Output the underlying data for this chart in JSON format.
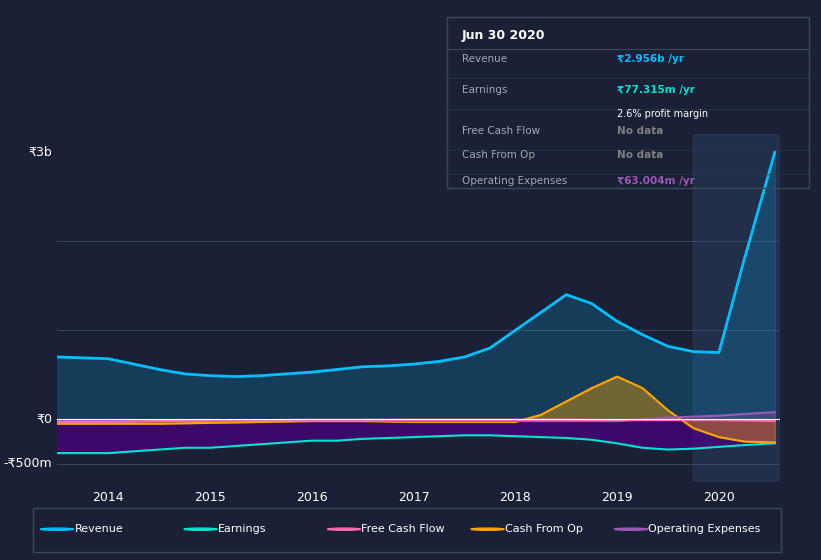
{
  "bg_color": "#1a2035",
  "chart_bg": "#1e2d45",
  "highlight_bg": "#2a3f5f",
  "title": "Jun 30 2020",
  "ylabel_top": "₹3b",
  "ylabel_zero": "₹0",
  "ylabel_bottom": "-₹500m",
  "x_labels": [
    "2014",
    "2015",
    "2016",
    "2017",
    "2018",
    "2019",
    "2020"
  ],
  "revenue_color": "#00bfff",
  "earnings_color": "#00e5cc",
  "free_cash_flow_color": "#ff69b4",
  "cash_from_op_color": "#ffa500",
  "operating_exp_color": "#9b59b6",
  "legend_items": [
    "Revenue",
    "Earnings",
    "Free Cash Flow",
    "Cash From Op",
    "Operating Expenses"
  ],
  "legend_colors": [
    "#00bfff",
    "#00e5cc",
    "#ff69b4",
    "#ffa500",
    "#9b59b6"
  ],
  "info_box": {
    "title": "Jun 30 2020",
    "revenue_label": "Revenue",
    "revenue_value": "₹2.956b /yr",
    "earnings_label": "Earnings",
    "earnings_value": "₹77.315m /yr",
    "profit_margin": "2.6% profit margin",
    "fcf_label": "Free Cash Flow",
    "fcf_value": "No data",
    "cfo_label": "Cash From Op",
    "cfo_value": "No data",
    "opex_label": "Operating Expenses",
    "opex_value": "₹63.004m /yr"
  },
  "revenue_x": [
    2013.5,
    2014.0,
    2014.25,
    2014.5,
    2014.75,
    2015.0,
    2015.25,
    2015.5,
    2015.75,
    2016.0,
    2016.25,
    2016.5,
    2016.75,
    2017.0,
    2017.25,
    2017.5,
    2017.75,
    2018.0,
    2018.25,
    2018.5,
    2018.75,
    2019.0,
    2019.25,
    2019.5,
    2019.75,
    2020.0,
    2020.25,
    2020.55
  ],
  "revenue_y": [
    700,
    680,
    620,
    560,
    510,
    490,
    480,
    490,
    510,
    530,
    560,
    590,
    600,
    620,
    650,
    700,
    800,
    1000,
    1200,
    1400,
    1300,
    1100,
    950,
    820,
    760,
    750,
    1800,
    3000
  ],
  "earnings_x": [
    2013.5,
    2014.0,
    2014.25,
    2014.5,
    2014.75,
    2015.0,
    2015.25,
    2015.5,
    2015.75,
    2016.0,
    2016.25,
    2016.5,
    2016.75,
    2017.0,
    2017.25,
    2017.5,
    2017.75,
    2018.0,
    2018.25,
    2018.5,
    2018.75,
    2019.0,
    2019.25,
    2019.5,
    2019.75,
    2020.0,
    2020.25,
    2020.55
  ],
  "earnings_y": [
    -380,
    -380,
    -360,
    -340,
    -320,
    -320,
    -300,
    -280,
    -260,
    -240,
    -240,
    -220,
    -210,
    -200,
    -190,
    -180,
    -180,
    -190,
    -200,
    -210,
    -230,
    -270,
    -320,
    -340,
    -330,
    -310,
    -290,
    -270
  ],
  "cash_from_op_x": [
    2013.5,
    2014.0,
    2014.5,
    2015.0,
    2015.5,
    2016.0,
    2016.5,
    2017.0,
    2017.5,
    2018.0,
    2018.25,
    2018.5,
    2018.75,
    2019.0,
    2019.25,
    2019.5,
    2019.75,
    2020.0,
    2020.25,
    2020.55
  ],
  "cash_from_op_y": [
    -50,
    -50,
    -50,
    -40,
    -30,
    -20,
    -20,
    -30,
    -30,
    -30,
    50,
    200,
    350,
    480,
    350,
    100,
    -100,
    -200,
    -250,
    -260
  ],
  "operating_exp_x": [
    2013.5,
    2014.0,
    2014.5,
    2015.0,
    2015.5,
    2016.0,
    2016.5,
    2017.0,
    2017.5,
    2018.0,
    2018.5,
    2019.0,
    2019.5,
    2020.0,
    2020.25,
    2020.55
  ],
  "operating_exp_y": [
    -20,
    -20,
    -15,
    -10,
    -10,
    -10,
    -10,
    -20,
    -20,
    -20,
    -20,
    -20,
    20,
    40,
    60,
    80
  ],
  "free_cash_flow_x": [
    2013.5,
    2014.0,
    2014.5,
    2015.0,
    2015.5,
    2016.0,
    2016.5,
    2017.0,
    2017.5,
    2018.0,
    2018.5,
    2019.0,
    2019.5,
    2020.0,
    2020.55
  ],
  "free_cash_flow_y": [
    -30,
    -30,
    -20,
    -15,
    -10,
    -5,
    -5,
    -5,
    -5,
    -5,
    -5,
    -10,
    -10,
    -10,
    -20
  ],
  "ylim": [
    -700,
    3200
  ],
  "xlim": [
    2013.5,
    2020.6
  ],
  "highlight_x_start": 2019.75,
  "highlight_x_end": 2020.6
}
